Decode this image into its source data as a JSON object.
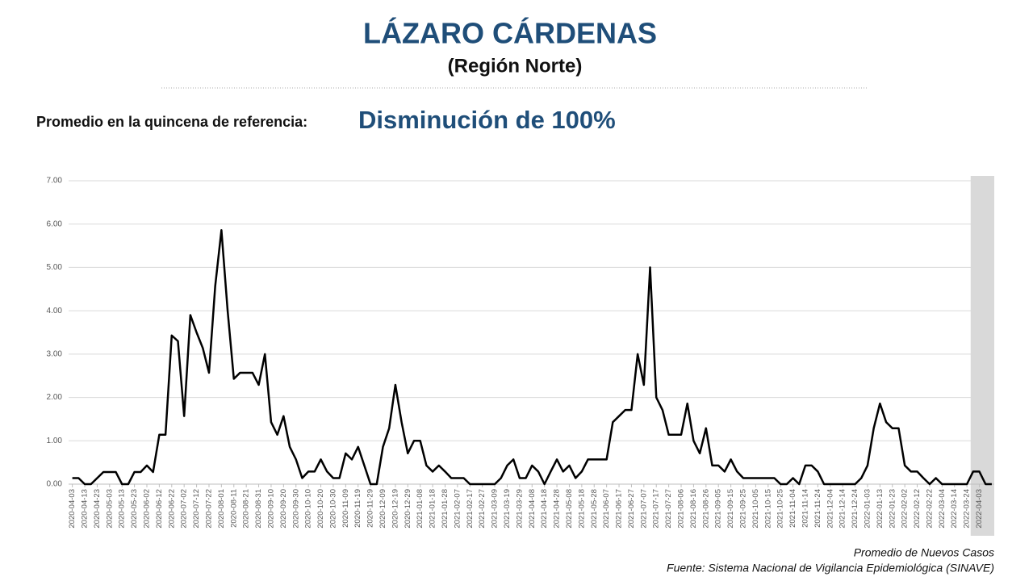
{
  "chart_data": {
    "type": "line",
    "title": "LÁZARO CÁRDENAS",
    "subtitle": "(Región Norte)",
    "reference_label": "Promedio en la quincena de referencia:",
    "reference_value": "Disminución de 100%",
    "series_name": "Promedio de Nuevos Casos",
    "source": "Fuente: Sistema Nacional de Vigilancia Epidemiológica (SINAVE)",
    "color": "#000000",
    "grid": true,
    "highlight": [
      "2022-03-27",
      "2022-04-15"
    ],
    "xlim": [
      "2020-03-31",
      "2022-04-15"
    ],
    "ylim": [
      0,
      7
    ],
    "yticks": [
      {
        "value": 0,
        "label": "0.00"
      },
      {
        "value": 1,
        "label": "1.00"
      },
      {
        "value": 2,
        "label": "2.00"
      },
      {
        "value": 3,
        "label": "3.00"
      },
      {
        "value": 4,
        "label": "4.00"
      },
      {
        "value": 5,
        "label": "5.00"
      },
      {
        "value": 6,
        "label": "6.00"
      },
      {
        "value": 7,
        "label": "7.00"
      }
    ],
    "xticks": [
      "2020-04-03",
      "2020-04-13",
      "2020-04-23",
      "2020-05-03",
      "2020-05-13",
      "2020-05-23",
      "2020-06-02",
      "2020-06-12",
      "2020-06-22",
      "2020-07-02",
      "2020-07-12",
      "2020-07-22",
      "2020-08-01",
      "2020-08-11",
      "2020-08-21",
      "2020-08-31",
      "2020-09-10",
      "2020-09-20",
      "2020-09-30",
      "2020-10-10",
      "2020-10-20",
      "2020-10-30",
      "2020-11-09",
      "2020-11-19",
      "2020-11-29",
      "2020-12-09",
      "2020-12-19",
      "2020-12-29",
      "2021-01-08",
      "2021-01-18",
      "2021-01-28",
      "2021-02-07",
      "2021-02-17",
      "2021-02-27",
      "2021-03-09",
      "2021-03-19",
      "2021-03-29",
      "2021-04-08",
      "2021-04-18",
      "2021-04-28",
      "2021-05-08",
      "2021-05-18",
      "2021-05-28",
      "2021-06-07",
      "2021-06-17",
      "2021-06-27",
      "2021-07-07",
      "2021-07-17",
      "2021-07-27",
      "2021-08-06",
      "2021-08-16",
      "2021-08-26",
      "2021-09-05",
      "2021-09-15",
      "2021-09-25",
      "2021-10-05",
      "2021-10-15",
      "2021-10-25",
      "2021-11-04",
      "2021-11-14",
      "2021-11-24",
      "2021-12-04",
      "2021-12-14",
      "2021-12-24",
      "2022-01-03",
      "2022-01-13",
      "2022-01-23",
      "2022-02-02",
      "2022-02-12",
      "2022-02-22",
      "2022-03-04",
      "2022-03-14",
      "2022-03-24",
      "2022-04-03"
    ],
    "x": [
      "2020-04-03",
      "2020-04-08",
      "2020-04-13",
      "2020-04-18",
      "2020-04-23",
      "2020-04-28",
      "2020-05-03",
      "2020-05-08",
      "2020-05-13",
      "2020-05-18",
      "2020-05-23",
      "2020-05-28",
      "2020-06-02",
      "2020-06-07",
      "2020-06-12",
      "2020-06-17",
      "2020-06-22",
      "2020-06-27",
      "2020-07-02",
      "2020-07-07",
      "2020-07-12",
      "2020-07-17",
      "2020-07-22",
      "2020-07-27",
      "2020-08-01",
      "2020-08-06",
      "2020-08-11",
      "2020-08-16",
      "2020-08-21",
      "2020-08-26",
      "2020-08-31",
      "2020-09-05",
      "2020-09-10",
      "2020-09-15",
      "2020-09-20",
      "2020-09-25",
      "2020-09-30",
      "2020-10-05",
      "2020-10-10",
      "2020-10-15",
      "2020-10-20",
      "2020-10-25",
      "2020-10-30",
      "2020-11-04",
      "2020-11-09",
      "2020-11-14",
      "2020-11-19",
      "2020-11-24",
      "2020-11-29",
      "2020-12-04",
      "2020-12-09",
      "2020-12-14",
      "2020-12-19",
      "2020-12-24",
      "2020-12-29",
      "2021-01-03",
      "2021-01-08",
      "2021-01-13",
      "2021-01-18",
      "2021-01-23",
      "2021-01-28",
      "2021-02-02",
      "2021-02-07",
      "2021-02-12",
      "2021-02-17",
      "2021-02-22",
      "2021-02-27",
      "2021-03-04",
      "2021-03-09",
      "2021-03-14",
      "2021-03-19",
      "2021-03-24",
      "2021-03-29",
      "2021-04-03",
      "2021-04-08",
      "2021-04-13",
      "2021-04-18",
      "2021-04-23",
      "2021-04-28",
      "2021-05-03",
      "2021-05-08",
      "2021-05-13",
      "2021-05-18",
      "2021-05-23",
      "2021-05-28",
      "2021-06-02",
      "2021-06-07",
      "2021-06-12",
      "2021-06-17",
      "2021-06-22",
      "2021-06-27",
      "2021-07-02",
      "2021-07-07",
      "2021-07-12",
      "2021-07-17",
      "2021-07-22",
      "2021-07-27",
      "2021-08-01",
      "2021-08-06",
      "2021-08-11",
      "2021-08-16",
      "2021-08-21",
      "2021-08-26",
      "2021-08-31",
      "2021-09-05",
      "2021-09-10",
      "2021-09-15",
      "2021-09-20",
      "2021-09-25",
      "2021-09-30",
      "2021-10-05",
      "2021-10-10",
      "2021-10-15",
      "2021-10-20",
      "2021-10-25",
      "2021-10-30",
      "2021-11-04",
      "2021-11-09",
      "2021-11-14",
      "2021-11-19",
      "2021-11-24",
      "2021-11-29",
      "2021-12-04",
      "2021-12-09",
      "2021-12-14",
      "2021-12-19",
      "2021-12-24",
      "2021-12-29",
      "2022-01-03",
      "2022-01-08",
      "2022-01-13",
      "2022-01-18",
      "2022-01-23",
      "2022-01-28",
      "2022-02-02",
      "2022-02-07",
      "2022-02-12",
      "2022-02-17",
      "2022-02-22",
      "2022-02-27",
      "2022-03-04",
      "2022-03-09",
      "2022-03-14",
      "2022-03-19",
      "2022-03-24",
      "2022-03-29",
      "2022-04-03",
      "2022-04-08",
      "2022-04-13"
    ],
    "values": [
      0.14,
      0.14,
      0,
      0,
      0.14,
      0.28,
      0.28,
      0.28,
      0,
      0,
      0.28,
      0.28,
      0.43,
      0.28,
      1.14,
      1.14,
      3.43,
      3.3,
      1.57,
      3.9,
      3.5,
      3.14,
      2.57,
      4.57,
      5.86,
      4.0,
      2.43,
      2.57,
      2.57,
      2.57,
      2.29,
      3.0,
      1.43,
      1.14,
      1.57,
      0.86,
      0.57,
      0.14,
      0.29,
      0.29,
      0.57,
      0.29,
      0.14,
      0.14,
      0.71,
      0.57,
      0.86,
      0.43,
      0,
      0,
      0.86,
      1.29,
      2.29,
      1.43,
      0.71,
      1.0,
      1.0,
      0.43,
      0.29,
      0.43,
      0.29,
      0.14,
      0.14,
      0.14,
      0,
      0,
      0,
      0,
      0,
      0.14,
      0.43,
      0.57,
      0.14,
      0.14,
      0.43,
      0.29,
      0,
      0.29,
      0.57,
      0.29,
      0.43,
      0.14,
      0.29,
      0.57,
      0.57,
      0.57,
      0.57,
      1.43,
      1.57,
      1.71,
      1.71,
      3.0,
      2.29,
      5.0,
      2.0,
      1.71,
      1.14,
      1.14,
      1.14,
      1.86,
      1.0,
      0.71,
      1.29,
      0.43,
      0.43,
      0.29,
      0.57,
      0.29,
      0.14,
      0.14,
      0.14,
      0.14,
      0.14,
      0.14,
      0,
      0,
      0.14,
      0,
      0.43,
      0.43,
      0.29,
      0,
      0,
      0,
      0,
      0,
      0,
      0.14,
      0.43,
      1.29,
      1.86,
      1.43,
      1.29,
      1.29,
      0.43,
      0.29,
      0.29,
      0.14,
      0,
      0.14,
      0,
      0,
      0,
      0,
      0,
      0.29,
      0.29,
      0,
      0
    ]
  }
}
